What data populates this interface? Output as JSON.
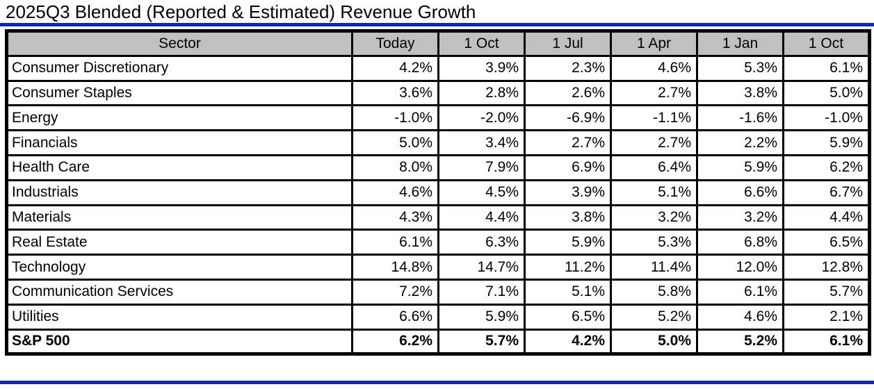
{
  "title": "2025Q3 Blended (Reported & Estimated) Revenue Growth",
  "colors": {
    "accent_blue": "#1222cb",
    "header_bg": "#c0c0c0",
    "border": "#000000"
  },
  "chart_data": {
    "type": "table",
    "title": "2025Q3 Blended (Reported & Estimated) Revenue Growth",
    "columns": [
      "Sector",
      "Today",
      "1 Oct",
      "1 Jul",
      "1 Apr",
      "1 Jan",
      "1 Oct"
    ],
    "rows": [
      {
        "sector": "Consumer Discretionary",
        "values": [
          "4.2%",
          "3.9%",
          "2.3%",
          "4.6%",
          "5.3%",
          "6.1%"
        ],
        "bold": false
      },
      {
        "sector": "Consumer Staples",
        "values": [
          "3.6%",
          "2.8%",
          "2.6%",
          "2.7%",
          "3.8%",
          "5.0%"
        ],
        "bold": false
      },
      {
        "sector": "Energy",
        "values": [
          "-1.0%",
          "-2.0%",
          "-6.9%",
          "-1.1%",
          "-1.6%",
          "-1.0%"
        ],
        "bold": false
      },
      {
        "sector": "Financials",
        "values": [
          "5.0%",
          "3.4%",
          "2.7%",
          "2.7%",
          "2.2%",
          "5.9%"
        ],
        "bold": false
      },
      {
        "sector": "Health Care",
        "values": [
          "8.0%",
          "7.9%",
          "6.9%",
          "6.4%",
          "5.9%",
          "6.2%"
        ],
        "bold": false
      },
      {
        "sector": "Industrials",
        "values": [
          "4.6%",
          "4.5%",
          "3.9%",
          "5.1%",
          "6.6%",
          "6.7%"
        ],
        "bold": false
      },
      {
        "sector": "Materials",
        "values": [
          "4.3%",
          "4.4%",
          "3.8%",
          "3.2%",
          "3.2%",
          "4.4%"
        ],
        "bold": false
      },
      {
        "sector": "Real Estate",
        "values": [
          "6.1%",
          "6.3%",
          "5.9%",
          "5.3%",
          "6.8%",
          "6.5%"
        ],
        "bold": false
      },
      {
        "sector": "Technology",
        "values": [
          "14.8%",
          "14.7%",
          "11.2%",
          "11.4%",
          "12.0%",
          "12.8%"
        ],
        "bold": false
      },
      {
        "sector": "Communication Services",
        "values": [
          "7.2%",
          "7.1%",
          "5.1%",
          "5.8%",
          "6.1%",
          "5.7%"
        ],
        "bold": false
      },
      {
        "sector": "Utilities",
        "values": [
          "6.6%",
          "5.9%",
          "6.5%",
          "5.2%",
          "4.6%",
          "2.1%"
        ],
        "bold": false
      },
      {
        "sector": "S&P 500",
        "values": [
          "6.2%",
          "5.7%",
          "4.2%",
          "5.0%",
          "5.2%",
          "6.1%"
        ],
        "bold": true
      }
    ]
  }
}
